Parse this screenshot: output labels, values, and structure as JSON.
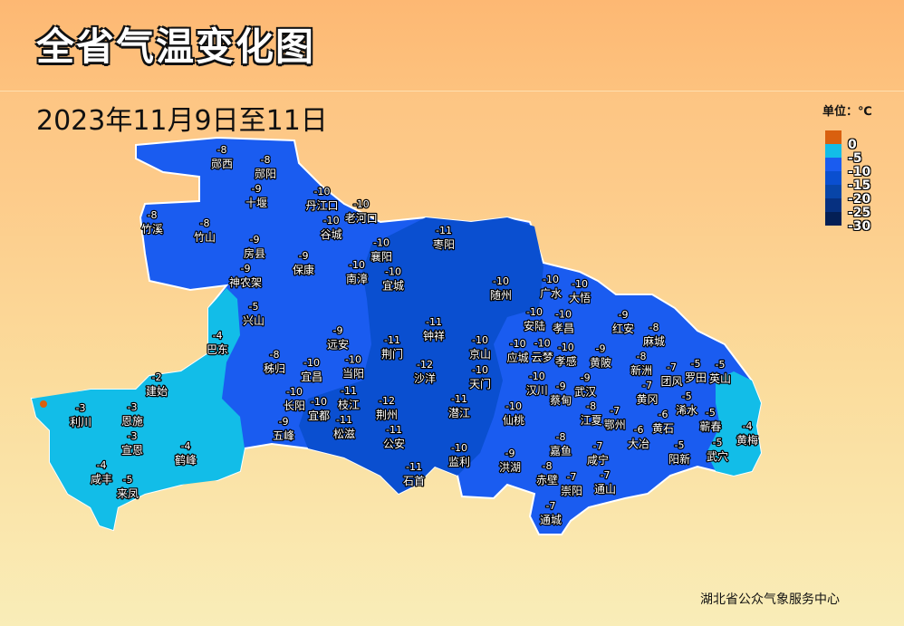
{
  "header": {
    "title": "全省气温变化图",
    "date_range": "2023年11月9日至11日"
  },
  "legend": {
    "unit": "单位：℃",
    "items": [
      {
        "label": "0",
        "color": "#d9600f"
      },
      {
        "label": "-5",
        "color": "#12bde8"
      },
      {
        "label": "-10",
        "color": "#1a5cf0"
      },
      {
        "label": "-15",
        "color": "#0a4fd0"
      },
      {
        "label": "-20",
        "color": "#0845a8"
      },
      {
        "label": "-25",
        "color": "#063080"
      },
      {
        "label": "-30",
        "color": "#041f55"
      }
    ]
  },
  "source": "湖北省公众气象服务中心",
  "stations": [
    {
      "name": "郧西",
      "value": "-8"
    },
    {
      "name": "郧阳",
      "value": "-8"
    },
    {
      "name": "十堰",
      "value": "-9"
    },
    {
      "name": "丹江口",
      "value": "-10"
    },
    {
      "name": "老河口",
      "value": "-10"
    },
    {
      "name": "谷城",
      "value": "-10"
    },
    {
      "name": "竹溪",
      "value": "-8"
    },
    {
      "name": "竹山",
      "value": "-8"
    },
    {
      "name": "房县",
      "value": "-9"
    },
    {
      "name": "保康",
      "value": "-9"
    },
    {
      "name": "襄阳",
      "value": "-10"
    },
    {
      "name": "南漳",
      "value": "-10"
    },
    {
      "name": "宜城",
      "value": "-10"
    },
    {
      "name": "枣阳",
      "value": "-11"
    },
    {
      "name": "神农架",
      "value": "-9"
    },
    {
      "name": "兴山",
      "value": "-5"
    },
    {
      "name": "巴东",
      "value": "-4"
    },
    {
      "name": "秭归",
      "value": "-8"
    },
    {
      "name": "远安",
      "value": "-9"
    },
    {
      "name": "当阳",
      "value": "-10"
    },
    {
      "name": "宜昌",
      "value": "-10"
    },
    {
      "name": "荆门",
      "value": "-11"
    },
    {
      "name": "钟祥",
      "value": "-11"
    },
    {
      "name": "沙洋",
      "value": "-12"
    },
    {
      "name": "京山",
      "value": "-10"
    },
    {
      "name": "天门",
      "value": "-10"
    },
    {
      "name": "随州",
      "value": "-10"
    },
    {
      "name": "广水",
      "value": "-10"
    },
    {
      "name": "大悟",
      "value": "-10"
    },
    {
      "name": "安陆",
      "value": "-10"
    },
    {
      "name": "孝昌",
      "value": "-10"
    },
    {
      "name": "应城",
      "value": "-10"
    },
    {
      "name": "云梦",
      "value": "-10"
    },
    {
      "name": "孝感",
      "value": "-10"
    },
    {
      "name": "红安",
      "value": "-9"
    },
    {
      "name": "麻城",
      "value": "-8"
    },
    {
      "name": "黄陂",
      "value": "-9"
    },
    {
      "name": "新洲",
      "value": "-8"
    },
    {
      "name": "汉川",
      "value": "-10"
    },
    {
      "name": "武汉",
      "value": "-9"
    },
    {
      "name": "蔡甸",
      "value": "-9"
    },
    {
      "name": "长阳",
      "value": "-10"
    },
    {
      "name": "宜都",
      "value": "-10"
    },
    {
      "name": "枝江",
      "value": "-11"
    },
    {
      "name": "松滋",
      "value": "-11"
    },
    {
      "name": "荆州",
      "value": "-12"
    },
    {
      "name": "公安",
      "value": "-11"
    },
    {
      "name": "石首",
      "value": "-11"
    },
    {
      "name": "潜江",
      "value": "-11"
    },
    {
      "name": "仙桃",
      "value": "-10"
    },
    {
      "name": "监利",
      "value": "-10"
    },
    {
      "name": "洪湖",
      "value": "-9"
    },
    {
      "name": "嘉鱼",
      "value": "-8"
    },
    {
      "name": "赤壁",
      "value": "-8"
    },
    {
      "name": "崇阳",
      "value": "-7"
    },
    {
      "name": "通城",
      "value": "-7"
    },
    {
      "name": "咸宁",
      "value": "-7"
    },
    {
      "name": "通山",
      "value": "-7"
    },
    {
      "name": "江夏",
      "value": "-8"
    },
    {
      "name": "鄂州",
      "value": "-7"
    },
    {
      "name": "黄冈",
      "value": "-7"
    },
    {
      "name": "团风",
      "value": "-7"
    },
    {
      "name": "浠水",
      "value": "-5"
    },
    {
      "name": "黄石",
      "value": "-6"
    },
    {
      "name": "大冶",
      "value": "-6"
    },
    {
      "name": "阳新",
      "value": "-5"
    },
    {
      "name": "蕲春",
      "value": "-5"
    },
    {
      "name": "罗田",
      "value": "-5"
    },
    {
      "name": "英山",
      "value": "-5"
    },
    {
      "name": "黄梅",
      "value": "-4"
    },
    {
      "name": "武穴",
      "value": "-5"
    },
    {
      "name": "利川",
      "value": "-3"
    },
    {
      "name": "恩施",
      "value": "-3"
    },
    {
      "name": "宣恩",
      "value": "-3"
    },
    {
      "name": "建始",
      "value": "-2"
    },
    {
      "name": "鹤峰",
      "value": "-4"
    },
    {
      "name": "咸丰",
      "value": "-4"
    },
    {
      "name": "来凤",
      "value": "-5"
    },
    {
      "name": "五峰",
      "value": "-9"
    }
  ]
}
